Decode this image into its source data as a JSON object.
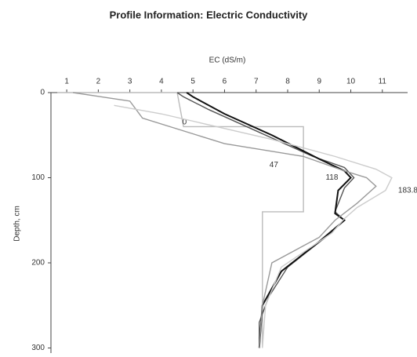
{
  "chart_data": {
    "type": "line",
    "title": "Profile Information: Electric Conductivity",
    "x_label": "EC (dS/m)",
    "y_label": "Depth, cm",
    "xlim": [
      0.5,
      11.8
    ],
    "xticks": [
      1,
      2,
      3,
      4,
      5,
      6,
      7,
      8,
      9,
      10,
      11
    ],
    "ylim": [
      0,
      306
    ],
    "yticks": [
      0,
      100,
      200,
      300
    ],
    "y_inverted": true,
    "series": [
      {
        "name": "0",
        "color": "#bbbbbb",
        "x": [
          0.7,
          4.5,
          4.7,
          8.5,
          8.5,
          7.2,
          7.2
        ],
        "values": [
          0,
          0,
          40,
          40,
          140,
          140,
          300
        ]
      },
      {
        "name": "47",
        "color": "#555555",
        "x": [
          4.5,
          4.7,
          5.5,
          7,
          8.8,
          9.8,
          10.1,
          9.8,
          9.5,
          9.8,
          9.2,
          8,
          7.4,
          7.1,
          7.1
        ],
        "values": [
          0,
          5,
          20,
          45,
          75,
          88,
          100,
          112,
          140,
          150,
          170,
          205,
          240,
          270,
          300
        ]
      },
      {
        "name": "118",
        "color": "#111111",
        "x": [
          4.8,
          5,
          6,
          7.5,
          9,
          9.8,
          10,
          9.6,
          9.5,
          9.8,
          9,
          7.8,
          7.2,
          7.1
        ],
        "values": [
          0,
          5,
          25,
          50,
          78,
          92,
          100,
          115,
          142,
          150,
          175,
          210,
          250,
          300
        ]
      },
      {
        "color": "#999999",
        "x": [
          1.2,
          3,
          3.4,
          6,
          8.5,
          9.8,
          10.5,
          10.8,
          10.2,
          9.5,
          9,
          7.5,
          7.2,
          7.1
        ],
        "values": [
          0,
          10,
          30,
          60,
          75,
          92,
          100,
          110,
          130,
          150,
          170,
          200,
          250,
          300
        ]
      },
      {
        "name": "183.8",
        "color": "#cccccc",
        "x": [
          2.5,
          4,
          7.5,
          9.5,
          10.8,
          11.3,
          11.1,
          10.2,
          9.8,
          9.4,
          7.8,
          7.3,
          7.2
        ],
        "values": [
          15,
          25,
          55,
          75,
          90,
          100,
          115,
          135,
          148,
          165,
          205,
          250,
          300
        ]
      }
    ]
  }
}
